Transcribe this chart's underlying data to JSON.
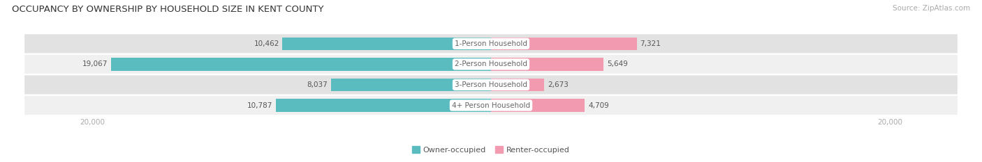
{
  "title": "OCCUPANCY BY OWNERSHIP BY HOUSEHOLD SIZE IN KENT COUNTY",
  "source": "Source: ZipAtlas.com",
  "categories": [
    "1-Person Household",
    "2-Person Household",
    "3-Person Household",
    "4+ Person Household"
  ],
  "owner_values": [
    10462,
    19067,
    8037,
    10787
  ],
  "renter_values": [
    7321,
    5649,
    2673,
    4709
  ],
  "max_val": 20000,
  "owner_color": "#5bbcbf",
  "renter_color": "#f29ab0",
  "row_bg_color_odd": "#f0f0f0",
  "row_bg_color_even": "#e2e2e2",
  "label_color": "#555555",
  "title_color": "#333333",
  "axis_label_color": "#aaaaaa",
  "center_label_color": "#666666",
  "legend_owner": "Owner-occupied",
  "legend_renter": "Renter-occupied",
  "value_label_fontsize": 7.5,
  "category_label_fontsize": 7.5,
  "title_fontsize": 9.5,
  "source_fontsize": 7.5,
  "axis_tick_fontsize": 7.5,
  "legend_fontsize": 8
}
